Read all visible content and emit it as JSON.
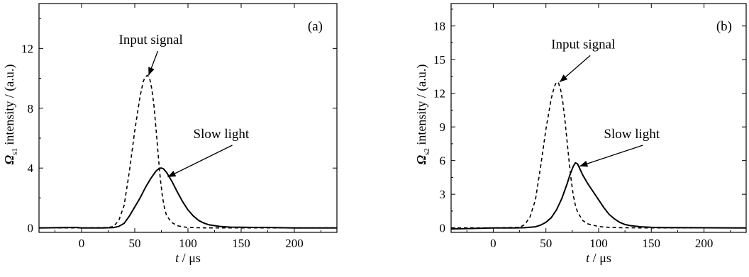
{
  "chart_data": [
    {
      "type": "line",
      "panel_label": "(a)",
      "xlabel_var": "t",
      "xlabel_unit": "μs",
      "ylabel_symbol": "Ω",
      "ylabel_sub": "s1",
      "ylabel_text": " intensity / (a.u.)",
      "xlim": [
        -40,
        240
      ],
      "ylim": [
        -0.3,
        15
      ],
      "xticks": [
        0,
        50,
        100,
        150,
        200
      ],
      "yticks": [
        0,
        4,
        8,
        12
      ],
      "annotations": [
        {
          "text": "Input signal",
          "text_x": 35,
          "text_y": 12.3,
          "tip_x": 63,
          "tip_y": 10.2
        },
        {
          "text": "Slow light",
          "text_x": 105,
          "text_y": 6.0,
          "tip_x": 81,
          "tip_y": 3.4
        }
      ],
      "series": [
        {
          "style": "dashed",
          "x": [
            -40,
            0,
            25,
            30,
            35,
            40,
            45,
            50,
            55,
            58,
            60,
            62,
            64,
            66,
            68,
            70,
            72,
            74,
            76,
            78,
            80,
            85,
            90,
            95,
            100,
            110,
            120,
            140,
            160,
            200,
            240
          ],
          "y": [
            0,
            0,
            0.02,
            0.1,
            0.5,
            1.5,
            3.8,
            6.5,
            8.8,
            9.8,
            10.1,
            10.2,
            10.0,
            9.3,
            8.2,
            6.6,
            4.9,
            3.3,
            2.1,
            1.3,
            0.8,
            0.35,
            0.15,
            0.07,
            0.03,
            0.01,
            0,
            0,
            0,
            0,
            0
          ]
        },
        {
          "style": "solid",
          "x": [
            -40,
            -5,
            0,
            20,
            30,
            35,
            40,
            45,
            50,
            55,
            60,
            65,
            70,
            73,
            75,
            77,
            80,
            85,
            90,
            95,
            100,
            105,
            110,
            115,
            120,
            130,
            140,
            150,
            160,
            180,
            200,
            240
          ],
          "y": [
            0,
            0.03,
            0,
            0,
            0.02,
            0.1,
            0.3,
            0.8,
            1.4,
            2.0,
            2.7,
            3.3,
            3.8,
            3.98,
            4.0,
            3.95,
            3.7,
            3.1,
            2.4,
            1.75,
            1.2,
            0.8,
            0.5,
            0.32,
            0.2,
            0.1,
            0.05,
            0.04,
            0.03,
            0.02,
            0.0,
            0.0
          ]
        }
      ]
    },
    {
      "type": "line",
      "panel_label": "(b)",
      "xlabel_var": "t",
      "xlabel_unit": "μs",
      "ylabel_symbol": "Ω",
      "ylabel_sub": "s2",
      "ylabel_text": " intensity / (a.u.)",
      "xlim": [
        -40,
        240
      ],
      "ylim": [
        -0.4,
        20
      ],
      "xticks": [
        0,
        50,
        100,
        150,
        200
      ],
      "yticks": [
        0,
        3,
        6,
        9,
        12,
        15,
        18
      ],
      "annotations": [
        {
          "text": "Input signal",
          "text_x": 55,
          "text_y": 16.0,
          "tip_x": 63,
          "tip_y": 13.0
        },
        {
          "text": "Slow light",
          "text_x": 105,
          "text_y": 8.0,
          "tip_x": 82,
          "tip_y": 5.5
        }
      ],
      "series": [
        {
          "style": "dashed",
          "x": [
            -40,
            0,
            25,
            30,
            35,
            40,
            45,
            50,
            55,
            58,
            60,
            62,
            64,
            66,
            68,
            70,
            72,
            74,
            76,
            78,
            80,
            85,
            90,
            100,
            110,
            120,
            140,
            160,
            200,
            240
          ],
          "y": [
            0,
            0,
            0.05,
            0.3,
            1.0,
            2.5,
            5.5,
            8.8,
            11.5,
            12.6,
            13.0,
            12.9,
            12.3,
            11.2,
            9.6,
            7.8,
            5.9,
            4.2,
            2.9,
            2.0,
            1.4,
            0.65,
            0.35,
            0.12,
            0.05,
            0.02,
            0,
            0,
            0,
            0
          ]
        },
        {
          "style": "solid",
          "x": [
            -40,
            0,
            20,
            30,
            40,
            45,
            50,
            55,
            60,
            65,
            70,
            73,
            76,
            78,
            80,
            82,
            85,
            90,
            95,
            100,
            105,
            110,
            115,
            120,
            125,
            130,
            140,
            150,
            160,
            180,
            200,
            240
          ],
          "y": [
            -0.1,
            0,
            0,
            0.02,
            0.1,
            0.25,
            0.5,
            0.9,
            1.6,
            2.6,
            3.9,
            4.8,
            5.5,
            5.8,
            5.7,
            5.3,
            4.7,
            3.9,
            3.2,
            2.5,
            1.8,
            1.2,
            0.8,
            0.5,
            0.3,
            0.2,
            0.1,
            0.05,
            0.03,
            0.02,
            0.01,
            0
          ]
        }
      ]
    }
  ]
}
